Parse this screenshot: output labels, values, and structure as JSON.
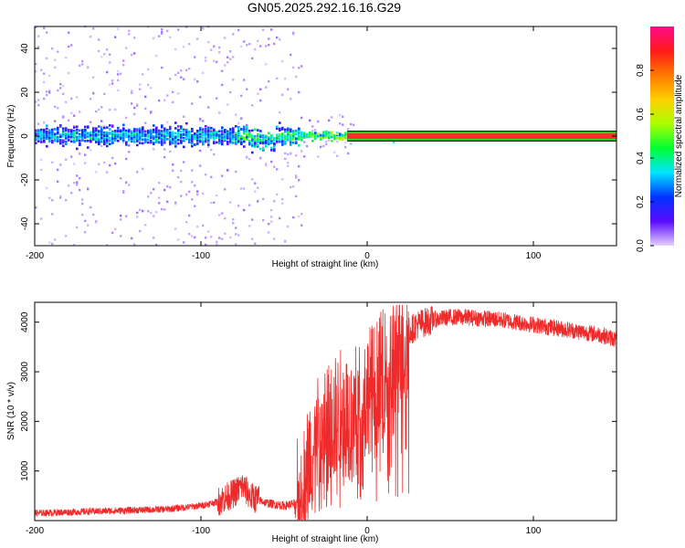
{
  "title": "GN05.2025.292.16.16.G29",
  "chart_data": [
    {
      "type": "heatmap",
      "name": "spectrogram",
      "xlabel": "Height of straight line (km)",
      "ylabel": "Frequency (Hz)",
      "xlim": [
        -200,
        150
      ],
      "ylim": [
        -50,
        50
      ],
      "xticks": [
        -200,
        -100,
        0,
        100
      ],
      "yticks": [
        -40,
        -20,
        0,
        20,
        40
      ],
      "colorbar": {
        "label": "Normalized spectral amplitude",
        "range": [
          0,
          1
        ],
        "ticks": [
          "0.0",
          "0.2",
          "0.4",
          "0.6",
          "0.8"
        ],
        "colors": [
          "#e6d2ff",
          "#5a0aff",
          "#0033ff",
          "#00e5ff",
          "#00ff33",
          "#aaff00",
          "#ffd000",
          "#ff7a00",
          "#ff1a1a",
          "#ff0a8c"
        ]
      },
      "line_frequency": 0,
      "line_color": "#ff3333"
    },
    {
      "type": "line",
      "name": "snr",
      "xlabel": "Height of straight line (km)",
      "ylabel": "SNR (10 * v/v)",
      "xlim": [
        -200,
        150
      ],
      "ylim": [
        0,
        4400
      ],
      "xticks": [
        -200,
        -100,
        0,
        100
      ],
      "yticks": [
        1000,
        2000,
        3000,
        4000
      ],
      "color": "#ee2a2a",
      "trend": {
        "x": [
          -200,
          -150,
          -120,
          -100,
          -90,
          -80,
          -75,
          -70,
          -60,
          -50,
          -42,
          -38,
          -35,
          -30,
          -25,
          -20,
          -15,
          -10,
          -5,
          0,
          5,
          10,
          15,
          20,
          25,
          30,
          40,
          50,
          60,
          80,
          100,
          120,
          140,
          150
        ],
        "y": [
          150,
          200,
          230,
          300,
          380,
          550,
          700,
          480,
          350,
          300,
          350,
          700,
          1200,
          1600,
          1900,
          2000,
          2200,
          2100,
          2300,
          2600,
          2800,
          3000,
          3200,
          3500,
          3800,
          3950,
          4050,
          4100,
          4100,
          4050,
          3950,
          3850,
          3750,
          3650
        ]
      }
    }
  ]
}
